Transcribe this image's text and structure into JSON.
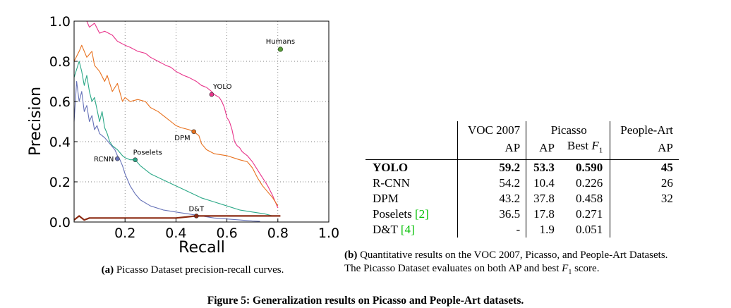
{
  "chart_data": {
    "type": "line",
    "xlabel": "Recall",
    "ylabel": "Precision",
    "xlim": [
      0,
      1.0
    ],
    "ylim": [
      0,
      1.0
    ],
    "x_ticks": [
      "0.2",
      "0.4",
      "0.6",
      "0.8",
      "1.0"
    ],
    "y_ticks": [
      "0.0",
      "0.2",
      "0.4",
      "0.6",
      "0.8",
      "1.0"
    ],
    "grid": true,
    "series": [
      {
        "name": "YOLO",
        "color": "#e8338a",
        "label_at": [
          0.54,
          0.635
        ],
        "x": [
          0.0,
          0.05,
          0.06,
          0.08,
          0.1,
          0.12,
          0.15,
          0.17,
          0.2,
          0.22,
          0.25,
          0.28,
          0.3,
          0.33,
          0.36,
          0.38,
          0.4,
          0.43,
          0.45,
          0.48,
          0.5,
          0.52,
          0.54,
          0.55,
          0.57,
          0.58,
          0.59,
          0.6,
          0.61,
          0.62,
          0.63,
          0.64,
          0.65,
          0.66,
          0.68,
          0.7,
          0.72,
          0.74,
          0.76,
          0.78,
          0.8
        ],
        "y": [
          1.0,
          1.0,
          0.97,
          0.99,
          0.94,
          0.95,
          0.93,
          0.9,
          0.88,
          0.87,
          0.85,
          0.84,
          0.82,
          0.8,
          0.78,
          0.77,
          0.75,
          0.73,
          0.72,
          0.7,
          0.68,
          0.67,
          0.65,
          0.635,
          0.62,
          0.6,
          0.57,
          0.52,
          0.5,
          0.46,
          0.4,
          0.38,
          0.37,
          0.35,
          0.33,
          0.3,
          0.26,
          0.22,
          0.18,
          0.13,
          0.07
        ]
      },
      {
        "name": "DPM",
        "color": "#e8711e",
        "label_at": [
          0.47,
          0.45
        ],
        "x": [
          0.0,
          0.02,
          0.03,
          0.05,
          0.07,
          0.08,
          0.1,
          0.12,
          0.13,
          0.15,
          0.17,
          0.19,
          0.2,
          0.22,
          0.25,
          0.28,
          0.3,
          0.33,
          0.36,
          0.38,
          0.4,
          0.42,
          0.45,
          0.47,
          0.49,
          0.5,
          0.52,
          0.55,
          0.6,
          0.65,
          0.68,
          0.7,
          0.72,
          0.74,
          0.76,
          0.78,
          0.8
        ],
        "y": [
          0.8,
          0.85,
          0.88,
          0.82,
          0.85,
          0.78,
          0.75,
          0.7,
          0.73,
          0.65,
          0.69,
          0.6,
          0.62,
          0.6,
          0.61,
          0.6,
          0.57,
          0.55,
          0.52,
          0.5,
          0.48,
          0.47,
          0.46,
          0.45,
          0.43,
          0.39,
          0.36,
          0.34,
          0.33,
          0.31,
          0.3,
          0.27,
          0.22,
          0.18,
          0.15,
          0.12,
          0.08
        ]
      },
      {
        "name": "Poselets",
        "color": "#2ba887",
        "label_at": [
          0.24,
          0.31
        ],
        "x": [
          0.0,
          0.02,
          0.03,
          0.04,
          0.05,
          0.06,
          0.07,
          0.08,
          0.09,
          0.1,
          0.11,
          0.12,
          0.13,
          0.14,
          0.15,
          0.17,
          0.19,
          0.2,
          0.22,
          0.24,
          0.26,
          0.3,
          0.35,
          0.4,
          0.45,
          0.5,
          0.55,
          0.6,
          0.65,
          0.7,
          0.75,
          0.78
        ],
        "y": [
          0.72,
          0.8,
          0.75,
          0.68,
          0.73,
          0.65,
          0.6,
          0.62,
          0.56,
          0.5,
          0.55,
          0.47,
          0.44,
          0.4,
          0.38,
          0.36,
          0.33,
          0.32,
          0.31,
          0.31,
          0.28,
          0.24,
          0.21,
          0.18,
          0.15,
          0.12,
          0.1,
          0.08,
          0.06,
          0.05,
          0.04,
          0.03
        ]
      },
      {
        "name": "RCNN",
        "color": "#6672b8",
        "label_at": [
          0.17,
          0.315
        ],
        "x": [
          0.0,
          0.01,
          0.02,
          0.03,
          0.04,
          0.05,
          0.06,
          0.07,
          0.08,
          0.09,
          0.1,
          0.12,
          0.14,
          0.16,
          0.17,
          0.18,
          0.19,
          0.2,
          0.22,
          0.24,
          0.26,
          0.3,
          0.35,
          0.4,
          0.45,
          0.5,
          0.55,
          0.6,
          0.65,
          0.7,
          0.73
        ],
        "y": [
          0.5,
          0.7,
          0.6,
          0.65,
          0.55,
          0.58,
          0.5,
          0.53,
          0.46,
          0.48,
          0.44,
          0.42,
          0.39,
          0.36,
          0.33,
          0.31,
          0.28,
          0.24,
          0.18,
          0.14,
          0.11,
          0.08,
          0.06,
          0.05,
          0.04,
          0.03,
          0.02,
          0.015,
          0.01,
          0.005,
          0.003
        ]
      },
      {
        "name": "D&T",
        "color": "#8b2a12",
        "label_at": [
          0.48,
          0.03
        ],
        "x": [
          0.0,
          0.01,
          0.02,
          0.03,
          0.04,
          0.06,
          0.08,
          0.1,
          0.2,
          0.3,
          0.4,
          0.48,
          0.6,
          0.7,
          0.8,
          0.81
        ],
        "y": [
          0.01,
          0.02,
          0.03,
          0.02,
          0.01,
          0.02,
          0.02,
          0.02,
          0.02,
          0.02,
          0.02,
          0.03,
          0.03,
          0.03,
          0.03,
          0.03
        ]
      },
      {
        "name": "Humans",
        "color": "#5a9a3a",
        "type": "point",
        "x": [
          0.81
        ],
        "y": [
          0.86
        ]
      }
    ]
  },
  "captions": {
    "a_prefix": "(a)",
    "a_text": "Picasso Dataset precision-recall curves.",
    "b_prefix": "(b)",
    "b_line1": "Quantitative results on the VOC 2007, Picasso, and People-Art Datasets.",
    "b_line2_pre": "The Picasso Dataset evaluates on both AP and best ",
    "b_line2_var": "F",
    "b_line2_sub": "1",
    "b_line2_post": " score.",
    "figure": "Figure 5: Generalization results on Picasso and People-Art datasets."
  },
  "table": {
    "header1": {
      "voc": "VOC 2007",
      "picasso": "Picasso",
      "peopleart": "People-Art"
    },
    "header2": {
      "voc": "AP",
      "picasso_ap": "AP",
      "picasso_f1_pre": "Best ",
      "picasso_f1_var": "F",
      "picasso_f1_sub": "1",
      "peopleart": "AP"
    },
    "rows": [
      {
        "method": "YOLO",
        "voc": "59.2",
        "picasso_ap": "53.3",
        "picasso_f1": "0.590",
        "peopleart": "45"
      },
      {
        "method": "R-CNN",
        "voc": "54.2",
        "picasso_ap": "10.4",
        "picasso_f1": "0.226",
        "peopleart": "26"
      },
      {
        "method": "DPM",
        "voc": "43.2",
        "picasso_ap": "37.8",
        "picasso_f1": "0.458",
        "peopleart": "32"
      },
      {
        "method": "Poselets ",
        "ref": "[2]",
        "voc": "36.5",
        "picasso_ap": "17.8",
        "picasso_f1": "0.271",
        "peopleart": ""
      },
      {
        "method": "D&T ",
        "ref": "[4]",
        "voc": "-",
        "picasso_ap": "1.9",
        "picasso_f1": "0.051",
        "peopleart": ""
      }
    ]
  }
}
